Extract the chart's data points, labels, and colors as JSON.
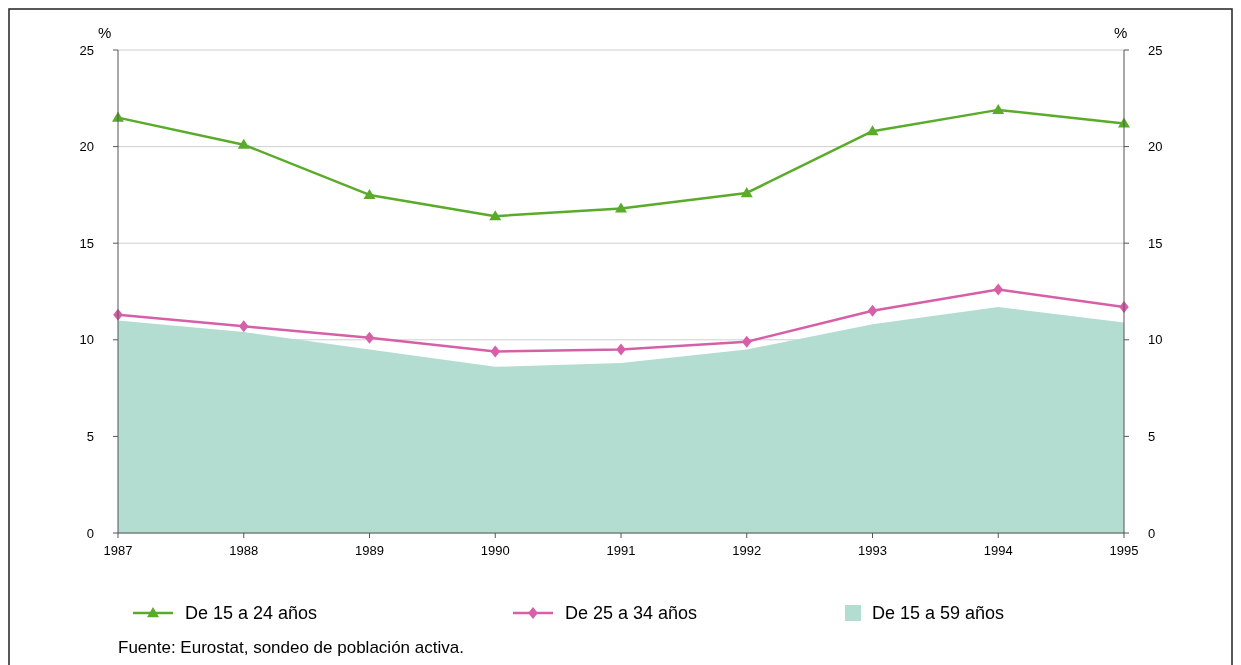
{
  "chart_data": {
    "type": "line",
    "ylabel": "%",
    "y2label": "%",
    "categories": [
      "1987",
      "1988",
      "1989",
      "1990",
      "1991",
      "1992",
      "1993",
      "1994",
      "1995"
    ],
    "series": [
      {
        "name": "De 15 a 24 años",
        "color": "#5aab2a",
        "marker": "triangle",
        "values": [
          21.5,
          20.1,
          17.5,
          16.4,
          16.8,
          17.6,
          20.8,
          21.9,
          21.2
        ]
      },
      {
        "name": "De 25 a 34 años",
        "color": "#d660a8",
        "marker": "diamond",
        "values": [
          11.3,
          10.7,
          10.1,
          9.4,
          9.5,
          9.9,
          11.5,
          12.6,
          11.7
        ]
      },
      {
        "name": "De 15 a 59 años",
        "type": "area",
        "color": "#b3ddd0",
        "values": [
          11.0,
          10.4,
          9.5,
          8.6,
          8.8,
          9.5,
          10.8,
          11.7,
          10.9
        ]
      }
    ],
    "ylim": [
      0,
      25
    ],
    "yticks": [
      0,
      5,
      10,
      15,
      20,
      25
    ],
    "y2lim": [
      0,
      25
    ],
    "y2ticks": [
      0,
      5,
      10,
      15,
      20,
      25
    ],
    "grid": "y",
    "legend": "bottom",
    "annotations": [
      "Fuente: Eurostat, sondeo de población activa."
    ]
  }
}
